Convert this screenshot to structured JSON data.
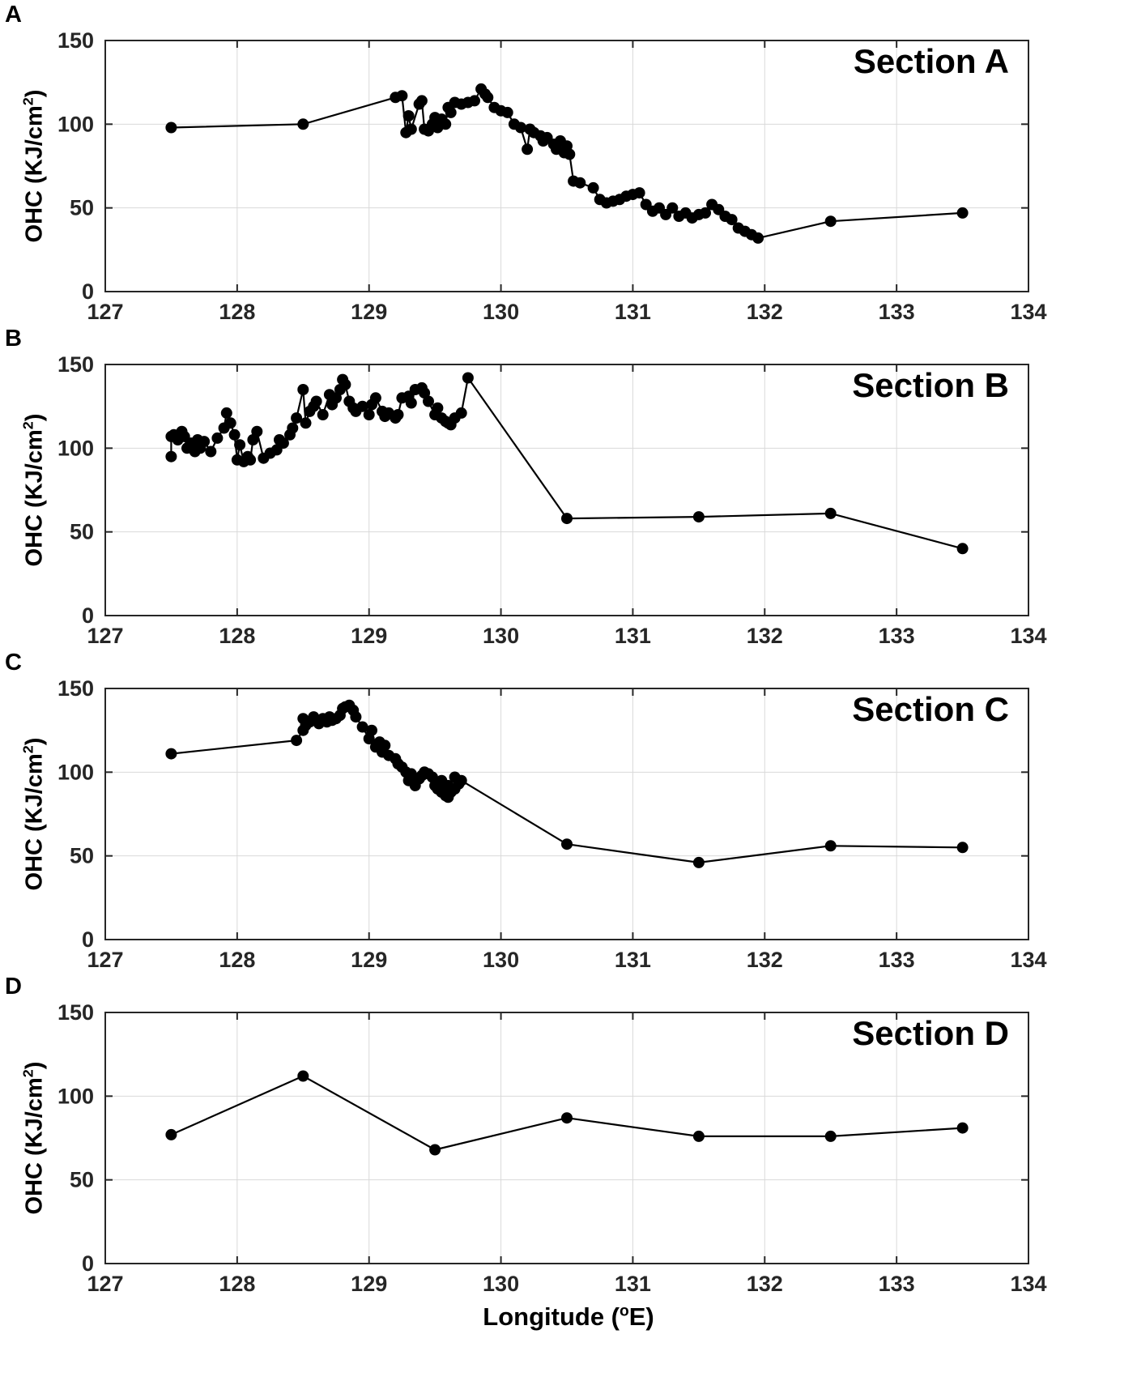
{
  "figure": {
    "xlabel_prefix": "Longitude (",
    "xlabel_sup": "o",
    "xlabel_suffix": "E)",
    "colors": {
      "axis": "#262626",
      "grid": "#d9d9d9",
      "line": "#000000",
      "background": "#ffffff"
    }
  },
  "chart_data": [
    {
      "type": "line",
      "panel_label": "A",
      "title": "Section A",
      "ylabel_prefix": "OHC (KJ/cm",
      "ylabel_sup": "2",
      "ylabel_suffix": ")",
      "xlim": [
        127,
        134
      ],
      "ylim": [
        0,
        150
      ],
      "xticks": [
        127,
        128,
        129,
        130,
        131,
        132,
        133,
        134
      ],
      "yticks": [
        0,
        50,
        100,
        150
      ],
      "grid": true,
      "legend": "none",
      "x": [
        127.5,
        128.5,
        129.2,
        129.25,
        129.28,
        129.3,
        129.32,
        129.38,
        129.4,
        129.42,
        129.45,
        129.48,
        129.5,
        129.52,
        129.55,
        129.58,
        129.6,
        129.62,
        129.65,
        129.7,
        129.75,
        129.8,
        129.85,
        129.88,
        129.9,
        129.95,
        130.0,
        130.05,
        130.1,
        130.15,
        130.2,
        130.22,
        130.25,
        130.3,
        130.32,
        130.35,
        130.4,
        130.42,
        130.45,
        130.48,
        130.5,
        130.52,
        130.55,
        130.6,
        130.7,
        130.75,
        130.8,
        130.85,
        130.9,
        130.95,
        131.0,
        131.05,
        131.1,
        131.15,
        131.2,
        131.25,
        131.3,
        131.35,
        131.4,
        131.45,
        131.5,
        131.55,
        131.6,
        131.65,
        131.7,
        131.75,
        131.8,
        131.85,
        131.9,
        131.95,
        132.5,
        133.5
      ],
      "y": [
        98,
        100,
        116,
        117,
        95,
        105,
        97,
        112,
        114,
        97,
        96,
        100,
        104,
        98,
        103,
        100,
        110,
        107,
        113,
        112,
        113,
        114,
        121,
        118,
        116,
        110,
        108,
        107,
        100,
        98,
        85,
        97,
        95,
        93,
        90,
        92,
        88,
        85,
        90,
        83,
        87,
        82,
        66,
        65,
        62,
        55,
        53,
        54,
        55,
        57,
        58,
        59,
        52,
        48,
        50,
        46,
        50,
        45,
        47,
        44,
        46,
        47,
        52,
        49,
        45,
        43,
        38,
        36,
        34,
        32,
        42,
        47
      ]
    },
    {
      "type": "line",
      "panel_label": "B",
      "title": "Section B",
      "ylabel_prefix": "OHC (KJ/cm",
      "ylabel_sup": "2",
      "ylabel_suffix": ")",
      "xlim": [
        127,
        134
      ],
      "ylim": [
        0,
        150
      ],
      "xticks": [
        127,
        128,
        129,
        130,
        131,
        132,
        133,
        134
      ],
      "yticks": [
        0,
        50,
        100,
        150
      ],
      "grid": true,
      "legend": "none",
      "x": [
        127.5,
        127.5,
        127.52,
        127.55,
        127.58,
        127.6,
        127.62,
        127.65,
        127.68,
        127.7,
        127.72,
        127.75,
        127.8,
        127.85,
        127.9,
        127.92,
        127.95,
        127.98,
        128.0,
        128.02,
        128.05,
        128.08,
        128.1,
        128.12,
        128.15,
        128.2,
        128.25,
        128.3,
        128.32,
        128.35,
        128.4,
        128.42,
        128.45,
        128.5,
        128.52,
        128.55,
        128.58,
        128.6,
        128.65,
        128.7,
        128.72,
        128.75,
        128.78,
        128.8,
        128.82,
        128.85,
        128.88,
        128.9,
        128.95,
        129.0,
        129.02,
        129.05,
        129.1,
        129.12,
        129.15,
        129.2,
        129.22,
        129.25,
        129.3,
        129.32,
        129.35,
        129.4,
        129.42,
        129.45,
        129.5,
        129.52,
        129.55,
        129.58,
        129.6,
        129.62,
        129.65,
        129.7,
        129.75,
        130.5,
        131.5,
        132.5,
        133.5
      ],
      "y": [
        95,
        107,
        108,
        105,
        110,
        107,
        100,
        103,
        98,
        105,
        100,
        104,
        98,
        106,
        112,
        121,
        115,
        108,
        93,
        102,
        92,
        95,
        93,
        105,
        110,
        94,
        97,
        99,
        105,
        103,
        108,
        112,
        118,
        135,
        115,
        122,
        125,
        128,
        120,
        132,
        126,
        130,
        135,
        141,
        138,
        128,
        124,
        122,
        125,
        120,
        126,
        130,
        122,
        119,
        121,
        118,
        120,
        130,
        131,
        127,
        135,
        136,
        133,
        128,
        120,
        124,
        118,
        116,
        115,
        114,
        118,
        121,
        142,
        58,
        59,
        61,
        40
      ]
    },
    {
      "type": "line",
      "panel_label": "C",
      "title": "Section C",
      "ylabel_prefix": "OHC (KJ/cm",
      "ylabel_sup": "2",
      "ylabel_suffix": ")",
      "xlim": [
        127,
        134
      ],
      "ylim": [
        0,
        150
      ],
      "xticks": [
        127,
        128,
        129,
        130,
        131,
        132,
        133,
        134
      ],
      "yticks": [
        0,
        50,
        100,
        150
      ],
      "grid": true,
      "legend": "none",
      "x": [
        127.5,
        128.45,
        128.5,
        128.5,
        128.52,
        128.55,
        128.58,
        128.6,
        128.62,
        128.65,
        128.68,
        128.7,
        128.72,
        128.75,
        128.78,
        128.8,
        128.82,
        128.85,
        128.88,
        128.9,
        128.95,
        129.0,
        129.02,
        129.05,
        129.08,
        129.1,
        129.12,
        129.15,
        129.2,
        129.22,
        129.25,
        129.28,
        129.3,
        129.32,
        129.35,
        129.38,
        129.4,
        129.42,
        129.45,
        129.48,
        129.5,
        129.52,
        129.55,
        129.55,
        129.58,
        129.6,
        129.6,
        129.62,
        129.65,
        129.65,
        129.68,
        129.7,
        130.5,
        131.5,
        132.5,
        133.5
      ],
      "y": [
        111,
        119,
        125,
        132,
        128,
        130,
        133,
        131,
        129,
        132,
        130,
        133,
        131,
        132,
        134,
        138,
        139,
        140,
        137,
        133,
        127,
        120,
        125,
        115,
        118,
        112,
        116,
        110,
        108,
        105,
        103,
        100,
        95,
        99,
        92,
        96,
        98,
        100,
        99,
        97,
        92,
        90,
        88,
        95,
        86,
        85,
        92,
        88,
        90,
        97,
        93,
        95,
        57,
        46,
        56,
        55
      ]
    },
    {
      "type": "line",
      "panel_label": "D",
      "title": "Section D",
      "ylabel_prefix": "OHC (KJ/cm",
      "ylabel_sup": "2",
      "ylabel_suffix": ")",
      "xlim": [
        127,
        134
      ],
      "ylim": [
        0,
        150
      ],
      "xticks": [
        127,
        128,
        129,
        130,
        131,
        132,
        133,
        134
      ],
      "yticks": [
        0,
        50,
        100,
        150
      ],
      "grid": true,
      "legend": "none",
      "x": [
        127.5,
        128.5,
        129.5,
        130.5,
        131.5,
        132.5,
        133.5
      ],
      "y": [
        77,
        112,
        68,
        87,
        76,
        76,
        81
      ]
    }
  ]
}
